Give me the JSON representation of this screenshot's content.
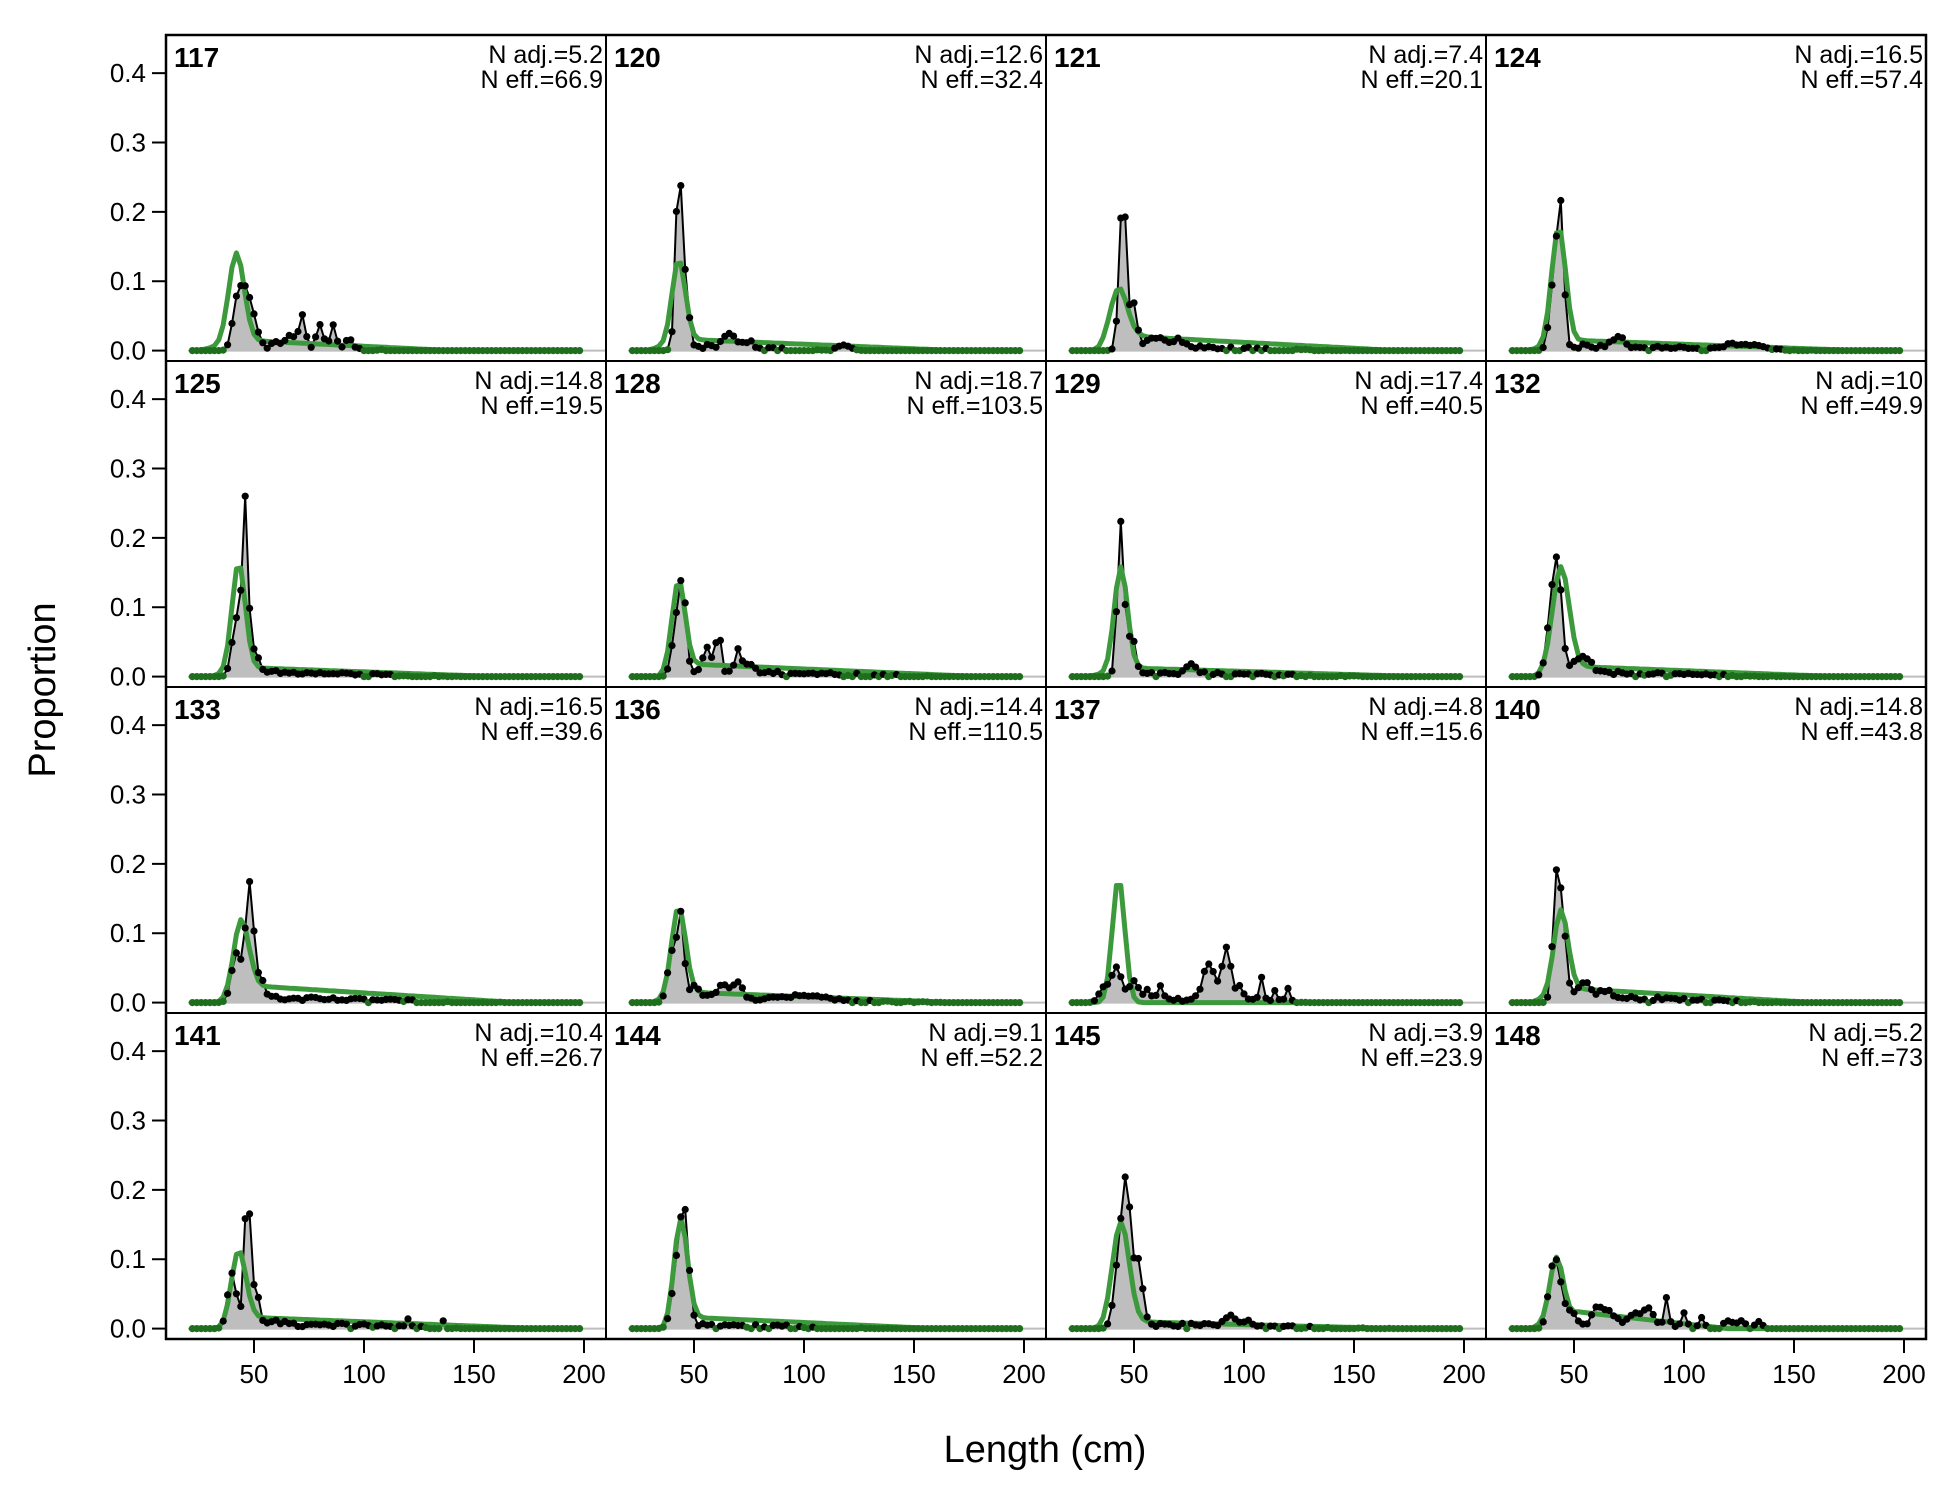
{
  "chart_data": {
    "type": "line",
    "xlabel": "Length (cm)",
    "ylabel": "Proportion",
    "xlim": [
      10,
      210
    ],
    "ylim": [
      -0.015,
      0.455
    ],
    "x_ticks": [
      50,
      100,
      150,
      200
    ],
    "y_ticks": [
      0.0,
      0.1,
      0.2,
      0.3,
      0.4
    ],
    "y_tick_labels": [
      "0.0",
      "0.1",
      "0.2",
      "0.3",
      "0.4"
    ],
    "grid": false,
    "x_range": [
      22,
      198
    ],
    "x_step": 2,
    "series_styles": {
      "observed": {
        "fill": "#bebebe",
        "line": "#000000"
      },
      "expected": {
        "line": "#3c9a3c"
      }
    },
    "panels": [
      {
        "label": "117",
        "n_adj": "N adj.=5.2",
        "n_eff": "N eff.=66.9",
        "obs": {
          "peaks": [
            [
              42,
              0.06,
              2.0
            ],
            [
              46,
              0.08,
              2.3
            ],
            [
              50,
              0.03,
              2
            ],
            [
              72,
              0.045,
              1.3
            ],
            [
              80,
              0.03,
              1.5
            ],
            [
              86,
              0.035,
              1.2
            ],
            [
              66,
              0.015,
              2.5
            ],
            [
              93,
              0.015,
              1.5
            ]
          ],
          "tail": [
            0.008,
            40,
            60,
            115
          ]
        },
        "exp": {
          "mu": 42,
          "sd": 3.5,
          "h": 0.13,
          "tail": [
            0.018,
            24,
            48,
            140
          ]
        }
      },
      {
        "label": "125",
        "n_adj": "N adj.=14.8",
        "n_eff": "N eff.=19.5",
        "obs": {
          "peaks": [
            [
              42,
              0.08,
              2.0
            ],
            [
              46,
              0.24,
              1.3
            ],
            [
              50,
              0.03,
              2
            ]
          ],
          "tail": [
            0.006,
            36,
            52,
            150
          ]
        },
        "exp": {
          "mu": 43,
          "sd": 3.0,
          "h": 0.155,
          "tail": [
            0.016,
            30,
            48,
            160
          ]
        }
      },
      {
        "label": "133",
        "n_adj": "N adj.=16.5",
        "n_eff": "N eff.=39.6",
        "obs": {
          "peaks": [
            [
              42,
              0.07,
              2.2
            ],
            [
              48,
              0.17,
              1.8
            ],
            [
              53,
              0.03,
              2
            ]
          ],
          "tail": [
            0.006,
            40,
            56,
            170
          ]
        },
        "exp": {
          "mu": 44,
          "sd": 3.5,
          "h": 0.11,
          "tail": [
            0.03,
            40,
            50,
            170
          ]
        }
      },
      {
        "label": "141",
        "n_adj": "N adj.=10.4",
        "n_eff": "N eff.=26.7",
        "obs": {
          "peaks": [
            [
              40,
              0.08,
              2.0
            ],
            [
              47,
              0.2,
              1.4
            ],
            [
              51,
              0.05,
              1.5
            ],
            [
              120,
              0.01,
              1
            ],
            [
              136,
              0.01,
              1
            ]
          ],
          "tail": [
            0.008,
            40,
            56,
            150
          ]
        },
        "exp": {
          "mu": 43,
          "sd": 3.3,
          "h": 0.105,
          "tail": [
            0.02,
            36,
            50,
            180
          ]
        }
      },
      {
        "label": "120",
        "n_adj": "N adj.=12.6",
        "n_eff": "N eff.=32.4",
        "obs": {
          "peaks": [
            [
              43,
              0.25,
              1.4
            ],
            [
              46,
              0.09,
              1.6
            ],
            [
              66,
              0.02,
              3
            ],
            [
              75,
              0.01,
              2
            ],
            [
              118,
              0.008,
              3
            ]
          ],
          "tail": [
            0.006,
            36,
            52,
            115
          ]
        },
        "exp": {
          "mu": 43,
          "sd": 3.0,
          "h": 0.12,
          "tail": [
            0.02,
            28,
            48,
            170
          ]
        }
      },
      {
        "label": "128",
        "n_adj": "N adj.=18.7",
        "n_eff": "N eff.=103.5",
        "obs": {
          "peaks": [
            [
              42,
              0.07,
              2
            ],
            [
              45,
              0.11,
              1.6
            ],
            [
              56,
              0.035,
              1.5
            ],
            [
              61,
              0.06,
              1.3
            ],
            [
              70,
              0.03,
              1.3
            ],
            [
              75,
              0.015,
              2
            ]
          ],
          "tail": [
            0.008,
            36,
            54,
            170
          ]
        },
        "exp": {
          "mu": 43,
          "sd": 3.0,
          "h": 0.13,
          "tail": [
            0.022,
            34,
            52,
            180
          ]
        }
      },
      {
        "label": "136",
        "n_adj": "N adj.=14.4",
        "n_eff": "N eff.=110.5",
        "obs": {
          "peaks": [
            [
              40,
              0.07,
              2
            ],
            [
              44,
              0.12,
              1.5
            ],
            [
              50,
              0.02,
              2
            ],
            [
              63,
              0.02,
              3
            ],
            [
              70,
              0.025,
              2
            ],
            [
              100,
              0.006,
              10
            ]
          ],
          "tail": [
            0.006,
            36,
            56,
            170
          ]
        },
        "exp": {
          "mu": 43,
          "sd": 3.2,
          "h": 0.13,
          "tail": [
            0.018,
            30,
            52,
            170
          ]
        }
      },
      {
        "label": "144",
        "n_adj": "N adj.=9.1",
        "n_eff": "N eff.=52.2",
        "obs": {
          "peaks": [
            [
              43,
              0.1,
              2.5
            ],
            [
              46,
              0.12,
              1.8
            ]
          ],
          "tail": [
            0.006,
            36,
            52,
            140
          ]
        },
        "exp": {
          "mu": 44,
          "sd": 3.0,
          "h": 0.15,
          "tail": [
            0.02,
            36,
            50,
            160
          ]
        }
      },
      {
        "label": "121",
        "n_adj": "N adj.=7.4",
        "n_eff": "N eff.=20.1",
        "obs": {
          "peaks": [
            [
              45,
              0.23,
              1.6
            ],
            [
              50,
              0.06,
              1.5
            ],
            [
              60,
              0.015,
              3
            ],
            [
              70,
              0.01,
              3
            ]
          ],
          "tail": [
            0.006,
            36,
            54,
            150
          ]
        },
        "exp": {
          "mu": 43,
          "sd": 4.0,
          "h": 0.08,
          "tail": [
            0.025,
            34,
            52,
            170
          ]
        }
      },
      {
        "label": "129",
        "n_adj": "N adj.=17.4",
        "n_eff": "N eff.=40.5",
        "obs": {
          "peaks": [
            [
              44,
              0.22,
              1.5
            ],
            [
              49,
              0.06,
              1.5
            ],
            [
              76,
              0.012,
              2
            ]
          ],
          "tail": [
            0.006,
            36,
            52,
            170
          ]
        },
        "exp": {
          "mu": 44,
          "sd": 3.0,
          "h": 0.15,
          "tail": [
            0.015,
            28,
            52,
            180
          ]
        }
      },
      {
        "label": "137",
        "n_adj": "N adj.=4.8",
        "n_eff": "N eff.=15.6",
        "obs": {
          "peaks": [
            [
              36,
              0.02,
              2
            ],
            [
              42,
              0.05,
              2.5
            ],
            [
              50,
              0.03,
              2
            ],
            [
              56,
              0.015,
              1.5
            ],
            [
              62,
              0.02,
              1.5
            ],
            [
              84,
              0.05,
              2.5
            ],
            [
              92,
              0.075,
              2
            ],
            [
              98,
              0.02,
              1.5
            ],
            [
              108,
              0.035,
              1
            ],
            [
              114,
              0.015,
              1
            ],
            [
              120,
              0.02,
              1
            ]
          ],
          "tail": [
            0.006,
            36,
            80,
            130
          ]
        },
        "exp": {
          "mu": 43,
          "sd": 2.8,
          "h": 0.18,
          "tail": [
            0.0,
            40,
            50,
            100
          ]
        }
      },
      {
        "label": "145",
        "n_adj": "N adj.=3.9",
        "n_eff": "N eff.=23.9",
        "obs": {
          "peaks": [
            [
              44,
              0.12,
              2.5
            ],
            [
              47,
              0.15,
              1.8
            ],
            [
              52,
              0.09,
              2
            ],
            [
              94,
              0.015,
              2.5
            ],
            [
              102,
              0.01,
              1.5
            ]
          ],
          "tail": [
            0.006,
            40,
            56,
            170
          ]
        },
        "exp": {
          "mu": 44,
          "sd": 3.8,
          "h": 0.15,
          "tail": [
            0.012,
            36,
            54,
            170
          ]
        }
      },
      {
        "label": "124",
        "n_adj": "N adj.=16.5",
        "n_eff": "N eff.=57.4",
        "obs": {
          "peaks": [
            [
              41,
              0.1,
              2
            ],
            [
              44,
              0.18,
              1.5
            ],
            [
              70,
              0.015,
              3
            ],
            [
              122,
              0.007,
              4
            ],
            [
              132,
              0.006,
              4
            ]
          ],
          "tail": [
            0.006,
            36,
            54,
            170
          ]
        },
        "exp": {
          "mu": 43,
          "sd": 3.2,
          "h": 0.17,
          "tail": [
            0.018,
            28,
            54,
            180
          ]
        }
      },
      {
        "label": "132",
        "n_adj": "N adj.=10",
        "n_eff": "N eff.=49.9",
        "obs": {
          "peaks": [
            [
              40,
              0.1,
              2.2
            ],
            [
              43,
              0.12,
              1.8
            ],
            [
              52,
              0.02,
              3
            ],
            [
              57,
              0.015,
              2
            ]
          ],
          "tail": [
            0.006,
            34,
            54,
            150
          ]
        },
        "exp": {
          "mu": 44,
          "sd": 3.8,
          "h": 0.15,
          "tail": [
            0.018,
            32,
            52,
            170
          ]
        }
      },
      {
        "label": "140",
        "n_adj": "N adj.=14.8",
        "n_eff": "N eff.=43.8",
        "obs": {
          "peaks": [
            [
              42,
              0.17,
              1.6
            ],
            [
              45,
              0.1,
              1.6
            ],
            [
              55,
              0.02,
              3
            ],
            [
              65,
              0.01,
              3
            ]
          ],
          "tail": [
            0.008,
            36,
            52,
            150
          ]
        },
        "exp": {
          "mu": 44,
          "sd": 3.2,
          "h": 0.12,
          "tail": [
            0.025,
            30,
            50,
            160
          ]
        }
      },
      {
        "label": "148",
        "n_adj": "N adj.=5.2",
        "n_eff": "N eff.=73",
        "obs": {
          "peaks": [
            [
              40,
              0.07,
              2
            ],
            [
              43,
              0.06,
              2
            ],
            [
              48,
              0.02,
              2
            ],
            [
              60,
              0.025,
              2
            ],
            [
              66,
              0.02,
              3
            ],
            [
              78,
              0.02,
              3
            ],
            [
              84,
              0.025,
              2
            ],
            [
              92,
              0.04,
              1
            ],
            [
              100,
              0.02,
              1
            ],
            [
              108,
              0.015,
              1
            ],
            [
              120,
              0.01,
              2
            ],
            [
              126,
              0.01,
              2
            ],
            [
              134,
              0.01,
              1.5
            ]
          ],
          "tail": [
            0.006,
            36,
            50,
            140
          ]
        },
        "exp": {
          "mu": 42,
          "sd": 3.0,
          "h": 0.09,
          "tail": [
            0.03,
            30,
            52,
            120
          ]
        }
      }
    ]
  }
}
